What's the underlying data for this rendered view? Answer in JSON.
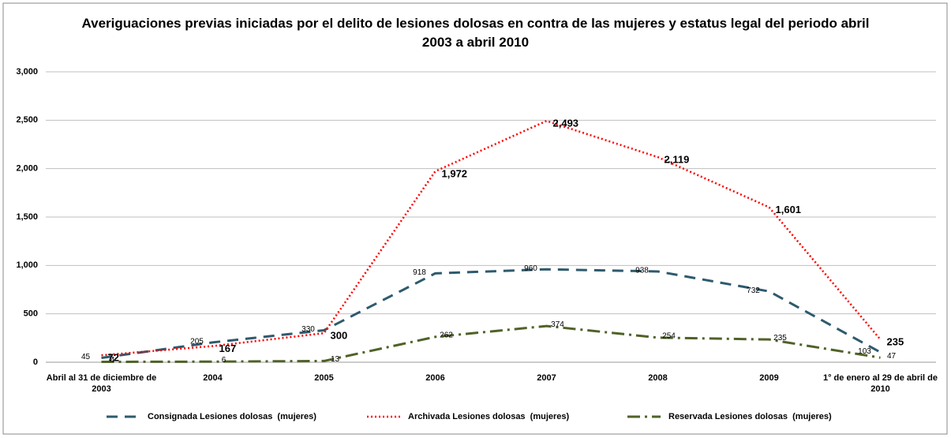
{
  "chart_data": {
    "type": "line",
    "title": "Averiguaciones previas iniciadas por el delito de lesiones dolosas en contra de las mujeres y estatus legal del periodo abril 2003 a abril 2010",
    "categories": [
      "Abril al 31 de diciembre de 2003",
      "2004",
      "2005",
      "2006",
      "2007",
      "2008",
      "2009",
      "1° de enero al 29 de abril de 2010"
    ],
    "series": [
      {
        "name": "Consignada Lesiones dolosas  (mujeres)",
        "color": "#2e5a6e",
        "values": [
          45,
          205,
          330,
          918,
          960,
          938,
          732,
          103
        ]
      },
      {
        "name": "Archivada Lesiones dolosas  (mujeres)",
        "color": "#ff0000",
        "values": [
          72,
          167,
          300,
          1972,
          2493,
          2119,
          1601,
          235
        ],
        "value_labels": [
          "72",
          "167",
          "300",
          "1,972",
          "2,493",
          "2,119",
          "1,601",
          "235"
        ]
      },
      {
        "name": "Reservada Lesiones dolosas  (mujeres)",
        "color": "#4f6228",
        "values": [
          4,
          6,
          13,
          262,
          374,
          254,
          235,
          47
        ]
      }
    ],
    "ylim": [
      0,
      3000
    ],
    "yticks": [
      0,
      500,
      {
        "value": 1000,
        "label": "1,000"
      },
      {
        "value": 1500,
        "label": "1,500"
      },
      {
        "value": 2000,
        "label": "2,000"
      },
      {
        "value": 2500,
        "label": "2,500"
      },
      {
        "value": 3000,
        "label": "3,000"
      }
    ],
    "grid": true,
    "legend": "bottom"
  }
}
